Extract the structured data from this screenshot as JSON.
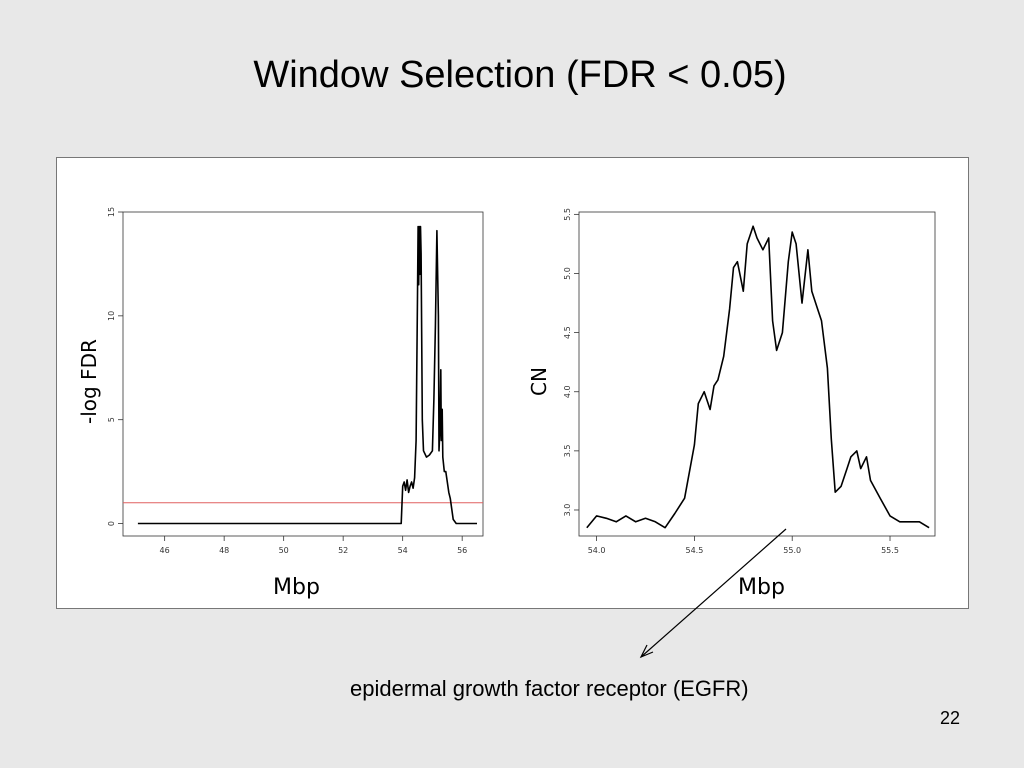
{
  "slide": {
    "title": "Window Selection (FDR < 0.05)",
    "annotation": "epidermal growth factor receptor (EGFR)",
    "page_number": "22"
  },
  "chart_data": [
    {
      "type": "line",
      "xlabel": "Mbp",
      "ylabel": "-log FDR",
      "xlim": [
        44.6,
        56.7
      ],
      "ylim": [
        -0.6,
        15.0
      ],
      "xticks": [
        46,
        48,
        50,
        52,
        54,
        56
      ],
      "yticks": [
        0,
        5,
        10,
        15
      ],
      "threshold": {
        "value": 1.0,
        "color": "#e06060"
      },
      "series_color": "#000000",
      "x": [
        45.1,
        53.95,
        54.0,
        54.05,
        54.1,
        54.15,
        54.2,
        54.25,
        54.3,
        54.35,
        54.4,
        54.45,
        54.5,
        54.52,
        54.54,
        54.56,
        54.58,
        54.6,
        54.62,
        54.64,
        54.66,
        54.7,
        54.8,
        54.9,
        55.0,
        55.05,
        55.1,
        55.15,
        55.2,
        55.22,
        55.25,
        55.28,
        55.3,
        55.33,
        55.35,
        55.4,
        55.45,
        55.5,
        55.55,
        55.6,
        55.7,
        55.8,
        56.0,
        56.5
      ],
      "y": [
        0.0,
        0.0,
        1.8,
        2.0,
        1.6,
        2.1,
        1.5,
        1.8,
        2.0,
        1.7,
        2.2,
        4.0,
        11.0,
        14.3,
        11.5,
        14.3,
        12.0,
        14.3,
        13.0,
        9.0,
        5.0,
        3.5,
        3.2,
        3.3,
        3.5,
        6.0,
        9.5,
        14.1,
        10.0,
        3.5,
        4.5,
        7.4,
        4.0,
        5.5,
        3.2,
        2.5,
        2.5,
        2.0,
        1.5,
        1.2,
        0.2,
        0.0,
        0.0,
        0.0
      ]
    },
    {
      "type": "line",
      "xlabel": "Mbp",
      "ylabel": "CN",
      "xlim": [
        53.91,
        55.73
      ],
      "ylim": [
        2.78,
        5.52
      ],
      "xticks": [
        54.0,
        54.5,
        55.0,
        55.5
      ],
      "yticks": [
        3.0,
        3.5,
        4.0,
        4.5,
        5.0,
        5.5
      ],
      "series_color": "#000000",
      "x": [
        53.95,
        54.0,
        54.05,
        54.1,
        54.15,
        54.2,
        54.25,
        54.3,
        54.35,
        54.4,
        54.45,
        54.5,
        54.52,
        54.55,
        54.58,
        54.6,
        54.62,
        54.65,
        54.68,
        54.7,
        54.72,
        54.75,
        54.77,
        54.8,
        54.82,
        54.85,
        54.88,
        54.9,
        54.92,
        54.95,
        54.98,
        55.0,
        55.02,
        55.05,
        55.08,
        55.1,
        55.13,
        55.15,
        55.18,
        55.2,
        55.22,
        55.25,
        55.28,
        55.3,
        55.33,
        55.35,
        55.38,
        55.4,
        55.45,
        55.5,
        55.55,
        55.6,
        55.65,
        55.7
      ],
      "y": [
        2.85,
        2.95,
        2.93,
        2.9,
        2.95,
        2.9,
        2.93,
        2.9,
        2.85,
        2.97,
        3.1,
        3.55,
        3.9,
        4.0,
        3.85,
        4.05,
        4.1,
        4.3,
        4.7,
        5.05,
        5.1,
        4.85,
        5.25,
        5.4,
        5.3,
        5.2,
        5.3,
        4.6,
        4.35,
        4.5,
        5.1,
        5.35,
        5.25,
        4.75,
        5.2,
        4.85,
        4.7,
        4.6,
        4.2,
        3.6,
        3.15,
        3.2,
        3.35,
        3.45,
        3.5,
        3.35,
        3.45,
        3.25,
        3.1,
        2.95,
        2.9,
        2.9,
        2.9,
        2.85
      ]
    }
  ]
}
